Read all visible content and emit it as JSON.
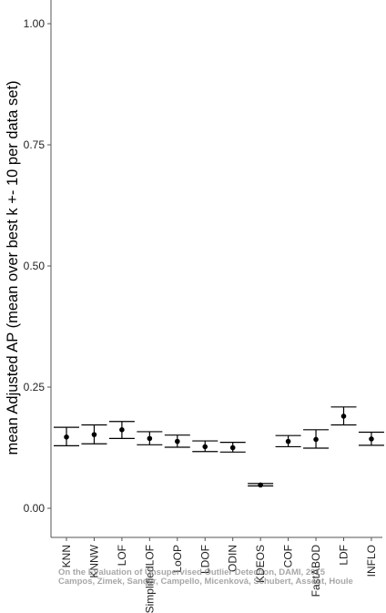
{
  "chart_data": {
    "type": "errorbar",
    "ylabel": "mean Adjusted AP (mean over best k +- 10 per data set)",
    "xlabel": "",
    "ylim": [
      -0.05,
      1.05
    ],
    "yticks": [
      0.0,
      0.25,
      0.5,
      0.75,
      1.0
    ],
    "ytick_labels": [
      "0.00",
      "0.25",
      "0.50",
      "0.75",
      "1.00"
    ],
    "grid": false,
    "categories": [
      "KNN",
      "KNNW",
      "LOF",
      "SimplifiedLOF",
      "LoOP",
      "LDOF",
      "ODIN",
      "KDEOS",
      "COF",
      "FastABOD",
      "LDF",
      "INFLO"
    ],
    "mean": [
      0.147,
      0.152,
      0.162,
      0.144,
      0.138,
      0.127,
      0.125,
      0.048,
      0.138,
      0.142,
      0.19,
      0.143
    ],
    "lower": [
      0.129,
      0.133,
      0.144,
      0.131,
      0.126,
      0.117,
      0.116,
      0.046,
      0.127,
      0.124,
      0.172,
      0.13
    ],
    "upper": [
      0.167,
      0.172,
      0.179,
      0.158,
      0.151,
      0.139,
      0.136,
      0.051,
      0.15,
      0.162,
      0.209,
      0.157
    ],
    "colors": {
      "marks": "#000000",
      "axis": "#555555",
      "watermark": "#8a8a8a"
    }
  },
  "watermark": {
    "line1": "On the Evaluation of Unsupervised Outlier Detection, DAMI, 2015",
    "line2": "Campos, Zimek, Sander, Campello, Micenková, Schubert, Assent, Houle"
  }
}
